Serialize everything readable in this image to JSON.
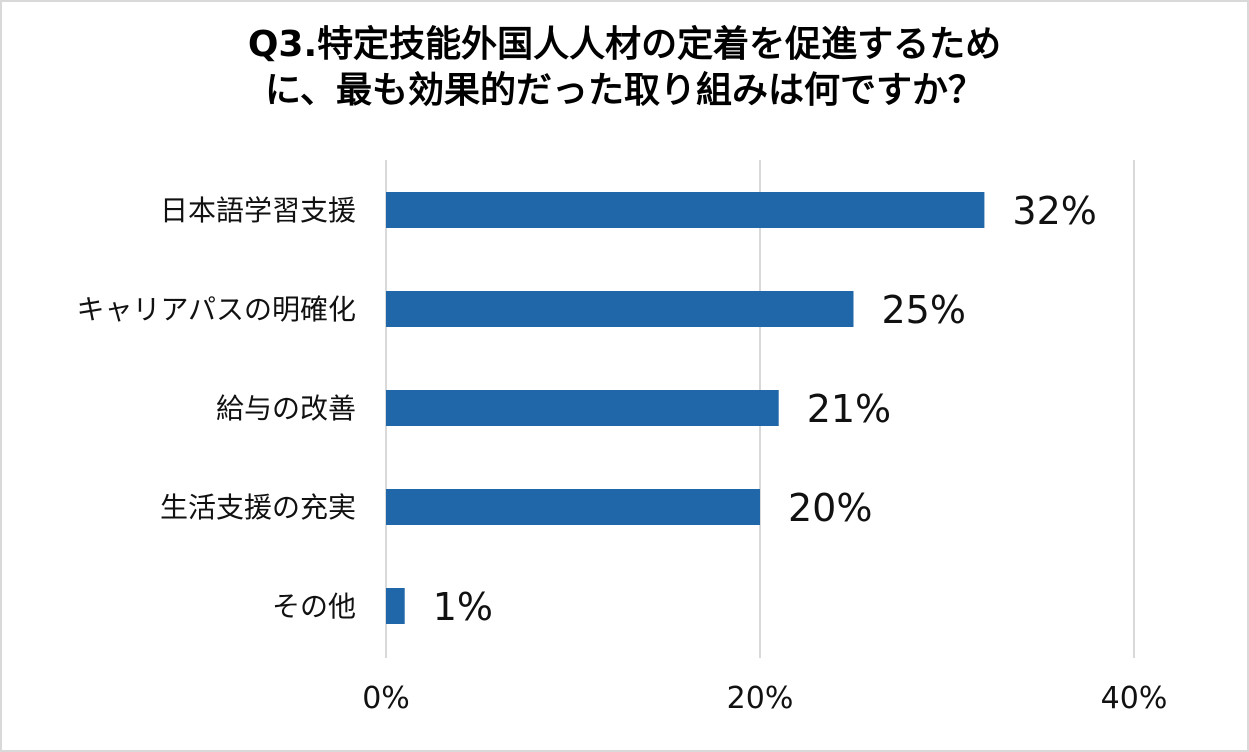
{
  "chart_data": {
    "type": "bar",
    "orientation": "horizontal",
    "title_lines": [
      "Q3.特定技能外国人人材の定着を促進するため",
      "に、最も効果的だった取り組みは何ですか？"
    ],
    "categories": [
      "日本語学習支援",
      "キャリアパスの明確化",
      "給与の改善",
      "生活支援の充実",
      "その他"
    ],
    "values": [
      32,
      25,
      21,
      20,
      1
    ],
    "value_labels": [
      "32%",
      "25%",
      "21%",
      "20%",
      "1%"
    ],
    "xlim": [
      0,
      40
    ],
    "x_ticks": [
      0,
      20,
      40
    ],
    "x_tick_labels": [
      "0%",
      "20%",
      "40%"
    ],
    "grid": true,
    "legend": "none",
    "bar_color": "#1f67a8",
    "grid_color": "#d9d9d9"
  }
}
